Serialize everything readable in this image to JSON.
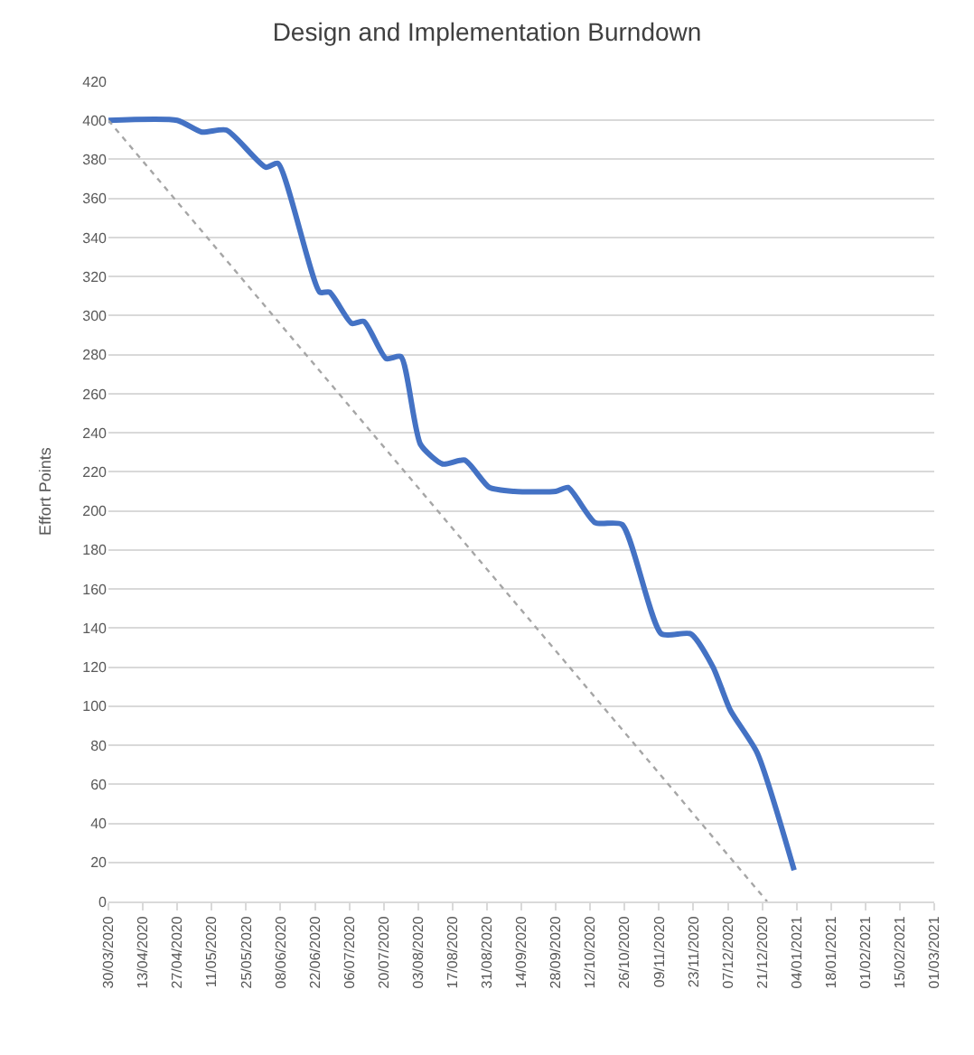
{
  "chart_data": {
    "type": "line",
    "title": "Design and Implementation Burndown",
    "ylabel": "Effort Points",
    "xlim": [
      "2020-03-30",
      "2021-03-01"
    ],
    "xticks": [
      {
        "value": "2020-03-30",
        "label": "30/03/2020"
      },
      {
        "value": "2020-04-13",
        "label": "13/04/2020"
      },
      {
        "value": "2020-04-27",
        "label": "27/04/2020"
      },
      {
        "value": "2020-05-11",
        "label": "11/05/2020"
      },
      {
        "value": "2020-05-25",
        "label": "25/05/2020"
      },
      {
        "value": "2020-06-08",
        "label": "08/06/2020"
      },
      {
        "value": "2020-06-22",
        "label": "22/06/2020"
      },
      {
        "value": "2020-07-06",
        "label": "06/07/2020"
      },
      {
        "value": "2020-07-20",
        "label": "20/07/2020"
      },
      {
        "value": "2020-08-03",
        "label": "03/08/2020"
      },
      {
        "value": "2020-08-17",
        "label": "17/08/2020"
      },
      {
        "value": "2020-08-31",
        "label": "31/08/2020"
      },
      {
        "value": "2020-09-14",
        "label": "14/09/2020"
      },
      {
        "value": "2020-09-28",
        "label": "28/09/2020"
      },
      {
        "value": "2020-10-12",
        "label": "12/10/2020"
      },
      {
        "value": "2020-10-26",
        "label": "26/10/2020"
      },
      {
        "value": "2020-11-09",
        "label": "09/11/2020"
      },
      {
        "value": "2020-11-23",
        "label": "23/11/2020"
      },
      {
        "value": "2020-12-07",
        "label": "07/12/2020"
      },
      {
        "value": "2020-12-21",
        "label": "21/12/2020"
      },
      {
        "value": "2021-01-04",
        "label": "04/01/2021"
      },
      {
        "value": "2021-01-18",
        "label": "18/01/2021"
      },
      {
        "value": "2021-02-01",
        "label": "01/02/2021"
      },
      {
        "value": "2021-02-15",
        "label": "15/02/2021"
      },
      {
        "value": "2021-03-01",
        "label": "01/03/2021"
      }
    ],
    "ylim": [
      0,
      420
    ],
    "yticks": [
      0,
      20,
      40,
      60,
      80,
      100,
      120,
      140,
      160,
      180,
      200,
      220,
      240,
      260,
      280,
      300,
      320,
      340,
      360,
      380,
      400,
      420
    ],
    "grid": "y",
    "marker": "none",
    "series": [
      {
        "color": "#4472c4",
        "line_style": "solid",
        "x": [
          "2020-03-30",
          "2020-04-27",
          "2020-05-07",
          "2020-05-17",
          "2020-06-02",
          "2020-06-07",
          "2020-06-24",
          "2020-06-28",
          "2020-07-07",
          "2020-07-12",
          "2020-07-21",
          "2020-07-27",
          "2020-08-04",
          "2020-08-13",
          "2020-08-22",
          "2020-09-01",
          "2020-09-11",
          "2020-09-28",
          "2020-10-03",
          "2020-10-14",
          "2020-10-25",
          "2020-11-10",
          "2020-11-22",
          "2020-12-01",
          "2020-12-08",
          "2020-12-19",
          "2021-01-03"
        ],
        "values": [
          400,
          400,
          394,
          395,
          376,
          378,
          312,
          312,
          296,
          297,
          278,
          279,
          234,
          224,
          226,
          212,
          210,
          210,
          212,
          194,
          193,
          137,
          137,
          120,
          98,
          76,
          16
        ]
      },
      {
        "color": "#a6a6a6",
        "line_style": "dotted",
        "x": [
          "2020-03-30",
          "2020-12-23"
        ],
        "values": [
          400,
          0
        ]
      }
    ]
  }
}
